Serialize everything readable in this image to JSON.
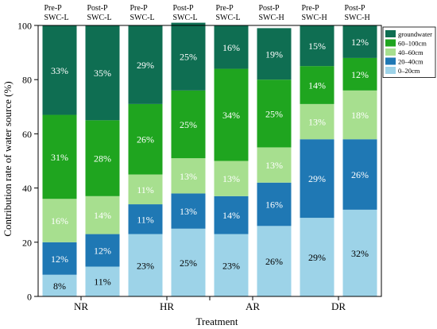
{
  "chart_data": {
    "type": "bar",
    "stacked": true,
    "percent_stacked": true,
    "ylabel": "Contribution rate of water source (%)",
    "xlabel": "Treatment",
    "ylim": [
      0,
      100
    ],
    "yticks": [
      0,
      20,
      40,
      60,
      80,
      100
    ],
    "groups": [
      "NR",
      "HR",
      "AR",
      "DR"
    ],
    "bars": [
      {
        "group": "NR",
        "label": [
          "Pre-P",
          "SWC-L"
        ]
      },
      {
        "group": "NR",
        "label": [
          "Post-P",
          "SWC-L"
        ]
      },
      {
        "group": "HR",
        "label": [
          "Pre-P",
          "SWC-L"
        ]
      },
      {
        "group": "HR",
        "label": [
          "Post-P",
          "SWC-L"
        ]
      },
      {
        "group": "AR",
        "label": [
          "Pre-P",
          "SWC-L"
        ]
      },
      {
        "group": "AR",
        "label": [
          "Post-P",
          "SWC-H"
        ]
      },
      {
        "group": "DR",
        "label": [
          "Pre-P",
          "SWC-H"
        ]
      },
      {
        "group": "DR",
        "label": [
          "Post-P",
          "SWC-H"
        ]
      }
    ],
    "series": [
      {
        "name": "0–20cm",
        "color": "#9dd3e8",
        "values": [
          8,
          11,
          23,
          25,
          23,
          26,
          29,
          32
        ]
      },
      {
        "name": "20–40cm",
        "color": "#1f78b4",
        "values": [
          12,
          12,
          11,
          13,
          14,
          16,
          29,
          26
        ]
      },
      {
        "name": "40–60cm",
        "color": "#a7df8f",
        "values": [
          16,
          14,
          11,
          13,
          13,
          13,
          13,
          18
        ]
      },
      {
        "name": "60–100cm",
        "color": "#1fa51f",
        "values": [
          31,
          28,
          26,
          25,
          34,
          25,
          14,
          12
        ]
      },
      {
        "name": "groundwater",
        "color": "#0f6e52",
        "values": [
          33,
          35,
          29,
          25,
          16,
          19,
          15,
          12
        ]
      }
    ],
    "legend_position": "top-right",
    "grid": false
  }
}
